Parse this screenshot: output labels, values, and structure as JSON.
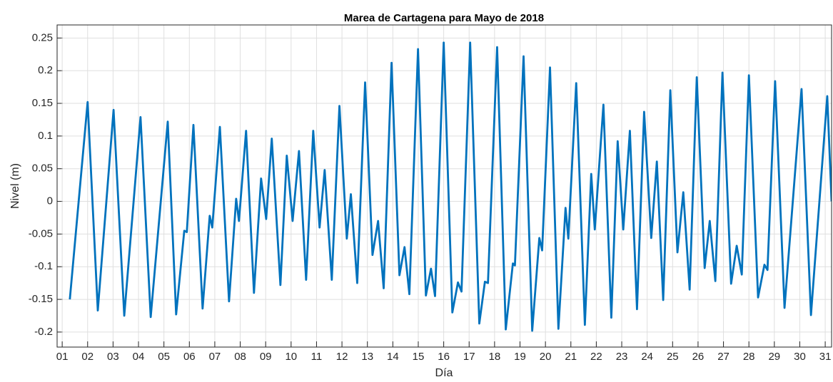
{
  "chart_data": {
    "type": "line",
    "title": "Marea de Cartagena para Mayo de 2018",
    "xlabel": "Día",
    "ylabel": "Nivel (m)",
    "grid": true,
    "xlim": [
      0.8,
      31.25
    ],
    "ylim": [
      -0.223,
      0.27
    ],
    "xticks": [
      {
        "value": 1,
        "label": "01"
      },
      {
        "value": 2,
        "label": "02"
      },
      {
        "value": 3,
        "label": "03"
      },
      {
        "value": 4,
        "label": "04"
      },
      {
        "value": 5,
        "label": "05"
      },
      {
        "value": 6,
        "label": "06"
      },
      {
        "value": 7,
        "label": "07"
      },
      {
        "value": 8,
        "label": "08"
      },
      {
        "value": 9,
        "label": "09"
      },
      {
        "value": 10,
        "label": "10"
      },
      {
        "value": 11,
        "label": "11"
      },
      {
        "value": 12,
        "label": "12"
      },
      {
        "value": 13,
        "label": "13"
      },
      {
        "value": 14,
        "label": "14"
      },
      {
        "value": 15,
        "label": "15"
      },
      {
        "value": 16,
        "label": "16"
      },
      {
        "value": 17,
        "label": "17"
      },
      {
        "value": 18,
        "label": "18"
      },
      {
        "value": 19,
        "label": "19"
      },
      {
        "value": 20,
        "label": "20"
      },
      {
        "value": 21,
        "label": "21"
      },
      {
        "value": 22,
        "label": "22"
      },
      {
        "value": 23,
        "label": "23"
      },
      {
        "value": 24,
        "label": "24"
      },
      {
        "value": 25,
        "label": "25"
      },
      {
        "value": 26,
        "label": "26"
      },
      {
        "value": 27,
        "label": "27"
      },
      {
        "value": 28,
        "label": "28"
      },
      {
        "value": 29,
        "label": "29"
      },
      {
        "value": 30,
        "label": "30"
      },
      {
        "value": 31,
        "label": "31"
      }
    ],
    "yticks": [
      -0.2,
      -0.15,
      -0.1,
      -0.05,
      0,
      0.05,
      0.1,
      0.15,
      0.2,
      0.25
    ],
    "series": [
      {
        "color": "#0072bd",
        "x": [
          1.3,
          2.0,
          2.4,
          3.02,
          3.44,
          4.08,
          4.48,
          5.15,
          5.48,
          5.8,
          5.9,
          6.16,
          6.52,
          6.8,
          6.9,
          7.2,
          7.56,
          7.84,
          7.95,
          8.23,
          8.54,
          8.82,
          9.02,
          9.24,
          9.58,
          9.83,
          10.06,
          10.31,
          10.59,
          10.87,
          11.12,
          11.32,
          11.6,
          11.9,
          12.19,
          12.35,
          12.6,
          12.91,
          13.2,
          13.42,
          13.64,
          13.95,
          14.26,
          14.46,
          14.65,
          14.99,
          15.3,
          15.5,
          15.66,
          16.0,
          16.34,
          16.56,
          16.7,
          17.04,
          17.4,
          17.62,
          17.74,
          18.1,
          18.44,
          18.72,
          18.8,
          19.14,
          19.48,
          19.76,
          19.87,
          20.18,
          20.51,
          20.79,
          20.9,
          21.21,
          21.55,
          21.8,
          21.94,
          22.28,
          22.59,
          22.84,
          23.06,
          23.32,
          23.6,
          23.88,
          24.16,
          24.38,
          24.63,
          24.91,
          25.19,
          25.42,
          25.67,
          25.95,
          26.26,
          26.46,
          26.68,
          26.96,
          27.3,
          27.52,
          27.72,
          28.0,
          28.36,
          28.61,
          28.73,
          29.03,
          29.4,
          30.07,
          30.44,
          31.08,
          31.25
        ],
        "values": [
          -0.15,
          0.152,
          -0.167,
          0.14,
          -0.175,
          0.129,
          -0.177,
          0.122,
          -0.173,
          -0.045,
          -0.047,
          0.117,
          -0.164,
          -0.022,
          -0.04,
          0.114,
          -0.153,
          0.004,
          -0.03,
          0.108,
          -0.14,
          0.035,
          -0.027,
          0.096,
          -0.128,
          0.07,
          -0.03,
          0.077,
          -0.12,
          0.108,
          -0.04,
          0.048,
          -0.12,
          0.146,
          -0.057,
          0.011,
          -0.125,
          0.182,
          -0.082,
          -0.03,
          -0.133,
          0.212,
          -0.113,
          -0.07,
          -0.142,
          0.233,
          -0.144,
          -0.103,
          -0.145,
          0.243,
          -0.17,
          -0.124,
          -0.138,
          0.243,
          -0.187,
          -0.123,
          -0.125,
          0.236,
          -0.196,
          -0.095,
          -0.098,
          0.222,
          -0.198,
          -0.056,
          -0.075,
          0.205,
          -0.195,
          -0.01,
          -0.057,
          0.181,
          -0.189,
          0.042,
          -0.043,
          0.148,
          -0.178,
          0.092,
          -0.043,
          0.108,
          -0.165,
          0.137,
          -0.056,
          0.061,
          -0.151,
          0.17,
          -0.078,
          0.014,
          -0.135,
          0.19,
          -0.102,
          -0.03,
          -0.122,
          0.197,
          -0.126,
          -0.068,
          -0.112,
          0.193,
          -0.147,
          -0.097,
          -0.105,
          0.184,
          -0.163,
          0.172,
          -0.174,
          0.161,
          0.0
        ]
      }
    ]
  }
}
